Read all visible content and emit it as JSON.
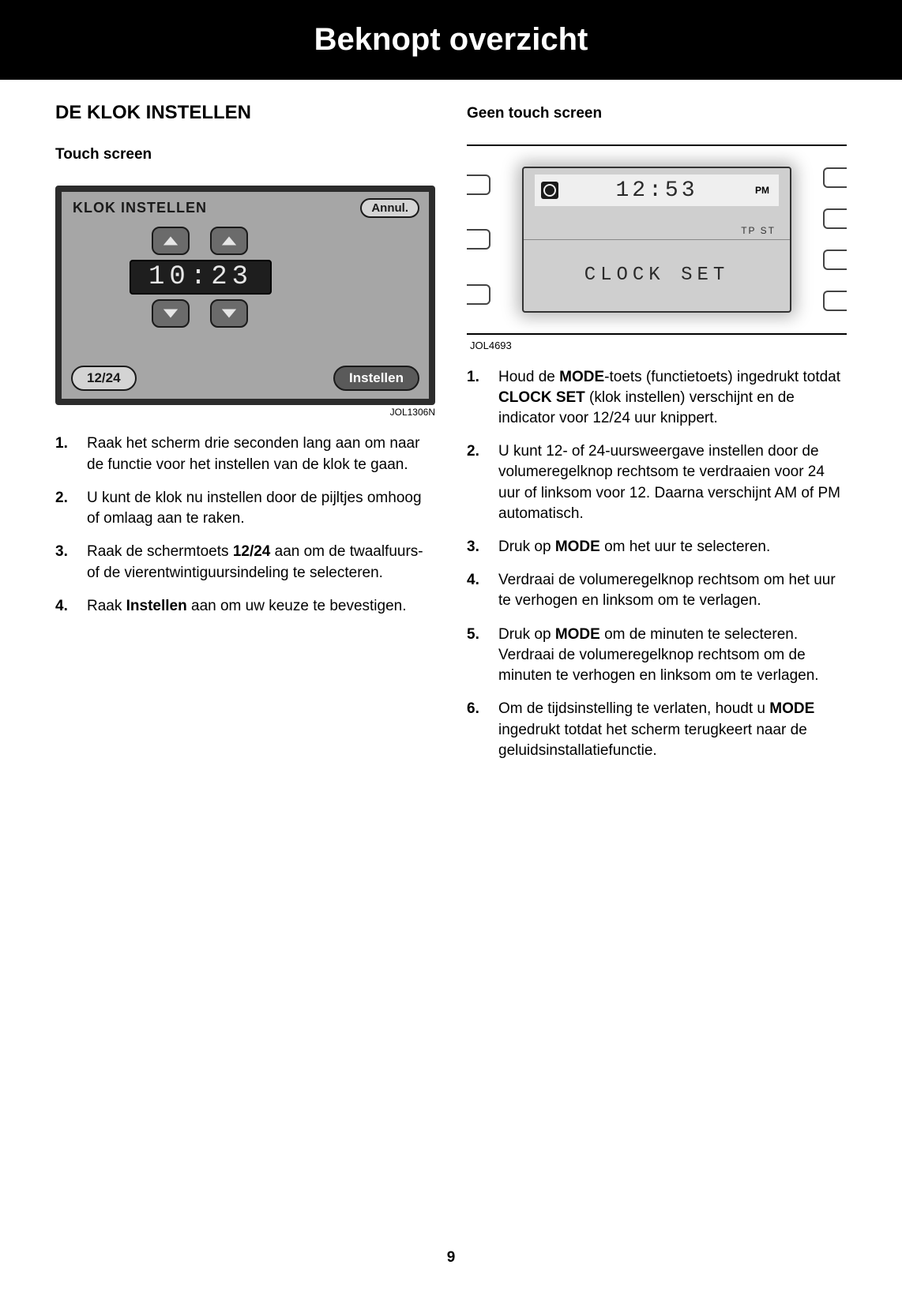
{
  "header": {
    "title": "Beknopt overzicht"
  },
  "page_number": "9",
  "left": {
    "section_title": "DE KLOK INSTELLEN",
    "subtitle": "Touch screen",
    "figure": {
      "title": "KLOK INSTELLEN",
      "annul": "Annul.",
      "time": "10:23",
      "btn_1224": "12/24",
      "btn_set": "Instellen",
      "code": "JOL1306N"
    },
    "steps": [
      {
        "text": "Raak het scherm drie seconden lang aan om naar de functie voor het instellen van de klok te gaan."
      },
      {
        "text": "U kunt de klok nu instellen door de pijltjes omhoog of omlaag aan te raken."
      },
      {
        "pre": "Raak de schermtoets ",
        "bold": "12/24",
        "post": " aan om de twaalfuurs- of de vierentwintiguursindeling te selecteren."
      },
      {
        "pre": "Raak ",
        "bold": "Instellen",
        "post": " aan om uw keuze te bevestigen."
      }
    ]
  },
  "right": {
    "subtitle": "Geen touch screen",
    "figure": {
      "time": "12:53",
      "pm": "PM",
      "tpst": "TP  ST",
      "label": "CLOCK SET",
      "code": "JOL4693"
    },
    "steps": [
      {
        "html": "Houd de <b>MODE</b>-toets (functietoets) ingedrukt totdat <b>CLOCK SET</b> (klok instellen) verschijnt en de indicator voor 12/24 uur knippert."
      },
      {
        "html": "U kunt 12- of 24-uursweergave instellen door de volumeregelknop rechtsom te verdraaien voor 24 uur of linksom voor 12. Daarna verschijnt AM of PM automatisch."
      },
      {
        "html": "Druk op <b>MODE</b> om het uur te selecteren."
      },
      {
        "html": "Verdraai de volumeregelknop rechtsom om het uur te verhogen en linksom om te verlagen."
      },
      {
        "html": "Druk op <b>MODE</b> om de minuten te selecteren. Verdraai de volumeregelknop rechtsom om de minuten te verhogen en linksom om te verlagen."
      },
      {
        "html": "Om de tijdsinstelling te verlaten, houdt u <b>MODE</b> ingedrukt totdat het scherm terugkeert naar de geluidsinstallatiefunctie."
      }
    ]
  }
}
